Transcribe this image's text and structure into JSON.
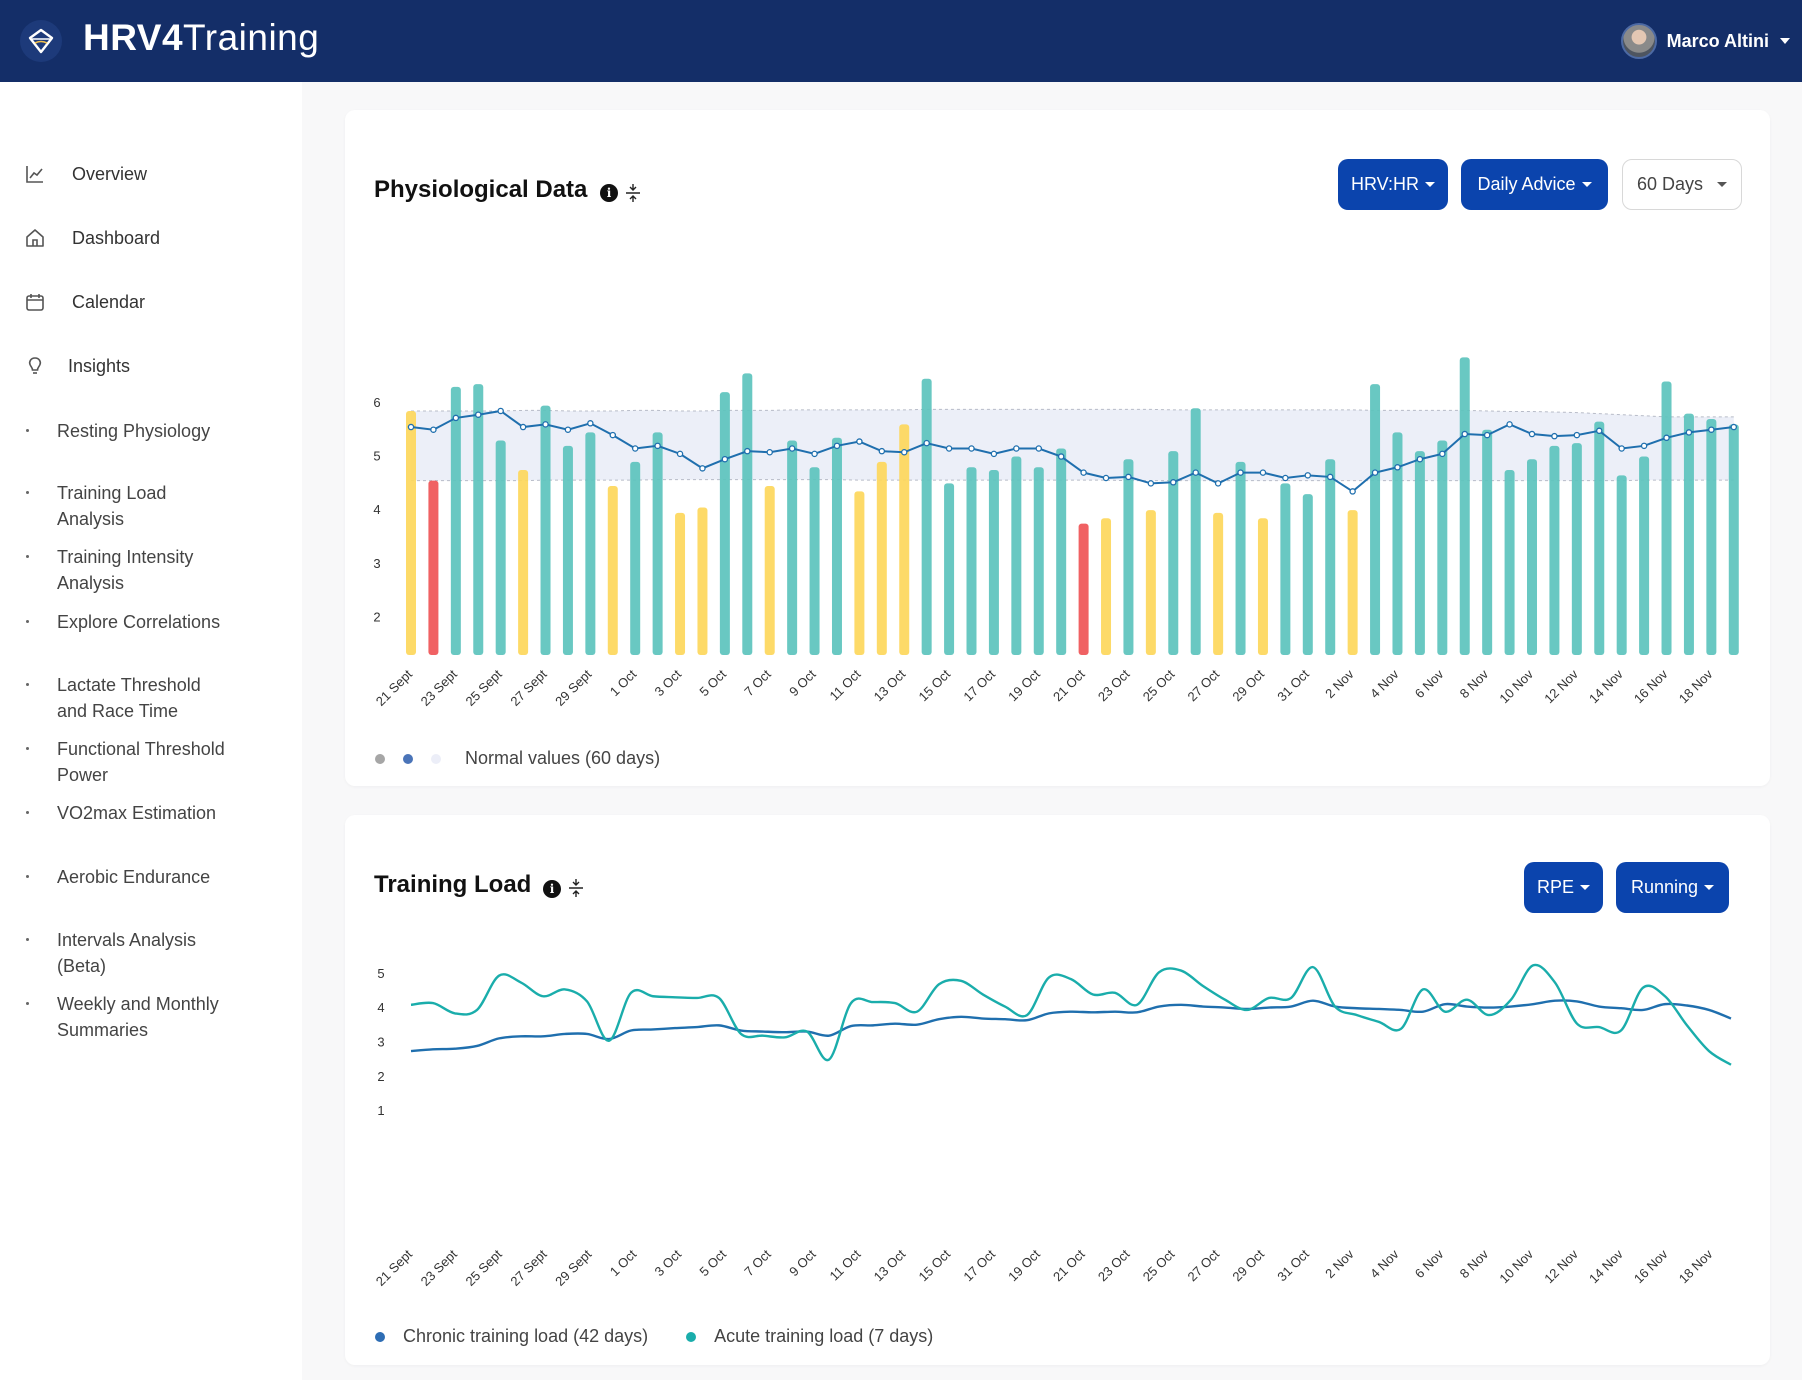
{
  "app": {
    "logo_bold": "HRV4",
    "logo_rest": "Training",
    "user_name": "Marco Altini"
  },
  "sidebar": {
    "main": [
      {
        "label": "Overview",
        "icon": "chart-line-icon"
      },
      {
        "label": "Dashboard",
        "icon": "home-icon"
      },
      {
        "label": "Calendar",
        "icon": "calendar-icon"
      },
      {
        "label": "Insights",
        "icon": "lightbulb-icon"
      }
    ],
    "sub": [
      {
        "lines": [
          "Resting Physiology"
        ]
      },
      {
        "lines": [
          "Training Load",
          "Analysis"
        ]
      },
      {
        "lines": [
          "Training Intensity",
          "Analysis"
        ]
      },
      {
        "lines": [
          "Explore Correlations"
        ]
      },
      {
        "lines": [
          "Lactate Threshold",
          "and Race Time"
        ]
      },
      {
        "lines": [
          "Functional Threshold",
          "Power"
        ]
      },
      {
        "lines": [
          "VO2max Estimation"
        ]
      },
      {
        "lines": [
          "Aerobic Endurance"
        ]
      },
      {
        "lines": [
          "Intervals Analysis",
          "(Beta)"
        ]
      },
      {
        "lines": [
          "Weekly and Monthly",
          "Summaries"
        ]
      }
    ]
  },
  "physio_card": {
    "title": "Physiological Data",
    "buttons": {
      "metric": "HRV:HR",
      "advice": "Daily Advice",
      "range": "60 Days"
    },
    "legend_label": "Normal values (60 days)"
  },
  "load_card": {
    "title": "Training Load",
    "buttons": {
      "load_type": "RPE",
      "sport": "Running"
    },
    "legend": {
      "chronic": "Chronic training load (42 days)",
      "acute": "Acute training load (7 days)"
    }
  },
  "colors": {
    "navy": "#142e68",
    "button_blue": "#0b44ad",
    "teal_bar": "#5ec4bd",
    "yellow_bar": "#fdd75c",
    "red_bar": "#ef5557",
    "line_blue": "#1f6fae",
    "acute_teal": "#1aadab",
    "band": "#e9ecf7"
  },
  "chart_data": [
    {
      "type": "bar",
      "title": "Physiological Data",
      "x_labels": [
        "21 Sept",
        "23 Sept",
        "25 Sept",
        "27 Sept",
        "29 Sept",
        "1 Oct",
        "3 Oct",
        "5 Oct",
        "7 Oct",
        "9 Oct",
        "11 Oct",
        "13 Oct",
        "15 Oct",
        "17 Oct",
        "19 Oct",
        "21 Oct",
        "23 Oct",
        "25 Oct",
        "27 Oct",
        "29 Oct",
        "31 Oct",
        "2 Nov",
        "4 Nov",
        "6 Nov",
        "8 Nov",
        "10 Nov",
        "12 Nov",
        "14 Nov",
        "16 Nov",
        "18 Nov"
      ],
      "yticks": [
        2,
        3,
        4,
        5,
        6
      ],
      "ylim": [
        1.3,
        6.8
      ],
      "bars": [
        5.85,
        4.55,
        6.3,
        6.35,
        5.3,
        4.75,
        5.95,
        5.2,
        5.45,
        4.45,
        4.9,
        5.45,
        3.95,
        4.05,
        6.2,
        6.55,
        4.45,
        5.3,
        4.8,
        5.35,
        4.35,
        4.9,
        5.6,
        6.45,
        4.5,
        4.8,
        4.75,
        5.0,
        4.8,
        5.15,
        3.75,
        3.85,
        4.95,
        4.0,
        5.1,
        5.9,
        3.95,
        4.9,
        3.85,
        4.5,
        4.3,
        4.95,
        4.0,
        6.35,
        5.45,
        5.1,
        5.3,
        6.85,
        5.5,
        4.75,
        4.95,
        5.2,
        5.25,
        5.65,
        4.65,
        5.0,
        6.4,
        5.8,
        5.7,
        5.6
      ],
      "bar_status": [
        "yellow",
        "red",
        "teal",
        "teal",
        "teal",
        "yellow",
        "teal",
        "teal",
        "teal",
        "yellow",
        "teal",
        "teal",
        "yellow",
        "yellow",
        "teal",
        "teal",
        "yellow",
        "teal",
        "teal",
        "teal",
        "yellow",
        "yellow",
        "yellow",
        "teal",
        "teal",
        "teal",
        "teal",
        "teal",
        "teal",
        "teal",
        "red",
        "yellow",
        "teal",
        "yellow",
        "teal",
        "teal",
        "yellow",
        "teal",
        "yellow",
        "teal",
        "teal",
        "teal",
        "yellow",
        "teal",
        "teal",
        "teal",
        "teal",
        "teal",
        "teal",
        "teal",
        "teal",
        "teal",
        "teal",
        "teal",
        "teal",
        "teal",
        "teal",
        "teal",
        "teal",
        "teal"
      ],
      "trend_line": [
        5.55,
        5.5,
        5.72,
        5.78,
        5.85,
        5.55,
        5.6,
        5.5,
        5.62,
        5.4,
        5.15,
        5.2,
        5.05,
        4.78,
        4.95,
        5.1,
        5.08,
        5.15,
        5.05,
        5.2,
        5.28,
        5.1,
        5.08,
        5.25,
        5.15,
        5.15,
        5.05,
        5.15,
        5.15,
        5.0,
        4.7,
        4.6,
        4.62,
        4.5,
        4.52,
        4.7,
        4.5,
        4.7,
        4.7,
        4.6,
        4.65,
        4.62,
        4.35,
        4.7,
        4.8,
        4.95,
        5.05,
        5.42,
        5.4,
        5.6,
        5.42,
        5.38,
        5.4,
        5.48,
        5.15,
        5.2,
        5.35,
        5.45,
        5.5,
        5.55
      ],
      "normal_band_upper": [
        5.85,
        5.85,
        5.85,
        5.85,
        5.85,
        5.86,
        5.86,
        5.85,
        5.85,
        5.85,
        5.86,
        5.86,
        5.85,
        5.85,
        5.86,
        5.86,
        5.86,
        5.87,
        5.87,
        5.87,
        5.87,
        5.87,
        5.87,
        5.88,
        5.88,
        5.88,
        5.88,
        5.88,
        5.88,
        5.88,
        5.88,
        5.88,
        5.88,
        5.88,
        5.87,
        5.87,
        5.87,
        5.87,
        5.87,
        5.87,
        5.87,
        5.87,
        5.87,
        5.86,
        5.86,
        5.86,
        5.86,
        5.86,
        5.85,
        5.84,
        5.84,
        5.83,
        5.82,
        5.8,
        5.78,
        5.76,
        5.74,
        5.74,
        5.74,
        5.74
      ],
      "normal_band_lower": [
        4.55,
        4.55,
        4.55,
        4.55,
        4.55,
        4.55,
        4.56,
        4.56,
        4.56,
        4.56,
        4.56,
        4.57,
        4.57,
        4.57,
        4.57,
        4.57,
        4.57,
        4.57,
        4.57,
        4.57,
        4.56,
        4.56,
        4.56,
        4.56,
        4.56,
        4.56,
        4.56,
        4.56,
        4.56,
        4.56,
        4.56,
        4.56,
        4.55,
        4.55,
        4.55,
        4.55,
        4.55,
        4.55,
        4.55,
        4.55,
        4.55,
        4.55,
        4.55,
        4.55,
        4.55,
        4.55,
        4.55,
        4.55,
        4.55,
        4.55,
        4.55,
        4.55,
        4.55,
        4.55,
        4.55,
        4.56,
        4.56,
        4.56,
        4.56,
        4.56
      ],
      "legend": [
        "",
        "",
        "Normal values (60 days)"
      ]
    },
    {
      "type": "line",
      "title": "Training Load",
      "x_labels": [
        "21 Sept",
        "23 Sept",
        "25 Sept",
        "27 Sept",
        "29 Sept",
        "1 Oct",
        "3 Oct",
        "5 Oct",
        "7 Oct",
        "9 Oct",
        "11 Oct",
        "13 Oct",
        "15 Oct",
        "17 Oct",
        "19 Oct",
        "21 Oct",
        "23 Oct",
        "25 Oct",
        "27 Oct",
        "29 Oct",
        "31 Oct",
        "2 Nov",
        "4 Nov",
        "6 Nov",
        "8 Nov",
        "10 Nov",
        "12 Nov",
        "14 Nov",
        "16 Nov",
        "18 Nov"
      ],
      "yticks": [
        1,
        2,
        3,
        4,
        5
      ],
      "ylim": [
        0.3,
        5.7
      ],
      "series": [
        {
          "name": "Chronic training load (42 days)",
          "color": "#1f6fae",
          "values": [
            2.75,
            2.8,
            2.82,
            2.9,
            3.12,
            3.18,
            3.18,
            3.25,
            3.25,
            3.1,
            3.35,
            3.38,
            3.42,
            3.45,
            3.5,
            3.35,
            3.32,
            3.3,
            3.32,
            3.2,
            3.48,
            3.5,
            3.55,
            3.52,
            3.68,
            3.75,
            3.7,
            3.68,
            3.65,
            3.85,
            3.9,
            3.88,
            3.9,
            3.88,
            4.05,
            4.1,
            4.05,
            4.02,
            3.98,
            4.02,
            4.05,
            4.22,
            4.05,
            4.0,
            3.98,
            3.95,
            3.9,
            4.12,
            4.05,
            4.02,
            4.05,
            4.12,
            4.22,
            4.2,
            4.05,
            4.0,
            3.95,
            4.12,
            4.08,
            3.95,
            3.7
          ]
        },
        {
          "name": "Acute training load (7 days)",
          "color": "#1aadab",
          "values": [
            4.1,
            4.15,
            3.85,
            3.95,
            4.95,
            4.75,
            4.35,
            4.55,
            4.2,
            3.05,
            4.45,
            4.35,
            4.32,
            4.3,
            4.3,
            3.25,
            3.2,
            3.15,
            3.32,
            2.5,
            4.15,
            4.18,
            4.15,
            3.9,
            4.7,
            4.8,
            4.4,
            4.05,
            3.8,
            4.9,
            4.85,
            4.4,
            4.45,
            4.1,
            5.05,
            5.1,
            4.65,
            4.25,
            3.95,
            4.3,
            4.3,
            5.2,
            4.05,
            3.8,
            3.6,
            3.4,
            4.55,
            3.9,
            4.25,
            3.8,
            4.25,
            5.25,
            4.75,
            3.55,
            3.45,
            3.35,
            4.6,
            4.35,
            3.5,
            2.75,
            2.35
          ]
        }
      ]
    }
  ]
}
